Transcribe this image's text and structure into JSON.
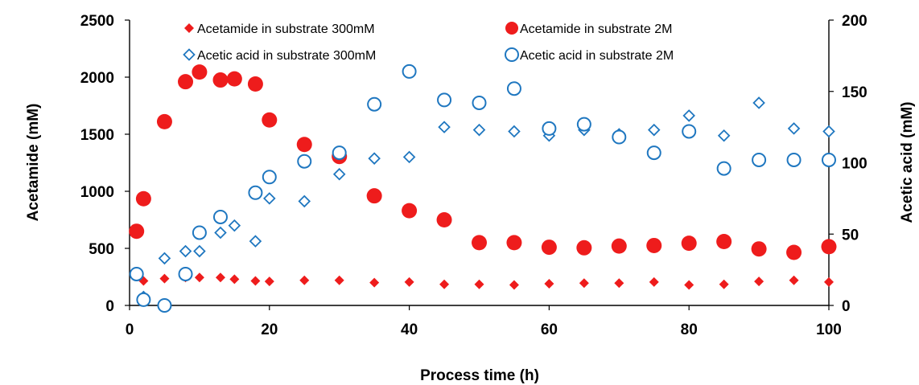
{
  "chart_data": {
    "type": "scatter",
    "xlabel": "Process time (h)",
    "ylabel_left": "Acetamide (mM)",
    "ylabel_right": "Acetic acid (mM)",
    "xlim": [
      0,
      100
    ],
    "ylim_left": [
      0,
      2500
    ],
    "ylim_right": [
      0,
      200
    ],
    "x_ticks": [
      0,
      20,
      40,
      60,
      80,
      100
    ],
    "y_left_ticks": [
      0,
      500,
      1000,
      1500,
      2000,
      2500
    ],
    "y_right_ticks": [
      0,
      50,
      100,
      150,
      200
    ],
    "grid": false,
    "legend_position": "top",
    "series": [
      {
        "name": "Acetamide in substrate 300mM",
        "axis": "left",
        "marker": "filled-diamond",
        "color": "#ee1c1c",
        "x": [
          1,
          2,
          5,
          8,
          10,
          13,
          15,
          18,
          20,
          25,
          30,
          35,
          40,
          45,
          50,
          55,
          60,
          65,
          70,
          75,
          80,
          85,
          90,
          95,
          100
        ],
        "y": [
          265,
          215,
          235,
          245,
          245,
          245,
          230,
          215,
          210,
          220,
          220,
          200,
          205,
          185,
          185,
          180,
          190,
          195,
          195,
          205,
          180,
          185,
          210,
          220,
          205
        ]
      },
      {
        "name": "Acetamide in substrate 2M",
        "axis": "left",
        "marker": "filled-circle",
        "color": "#ee1c1c",
        "x": [
          1,
          2,
          5,
          8,
          10,
          13,
          15,
          18,
          20,
          25,
          30,
          35,
          40,
          45,
          50,
          55,
          60,
          65,
          70,
          75,
          80,
          85,
          90,
          95,
          100
        ],
        "y": [
          650,
          935,
          1610,
          1960,
          2045,
          1975,
          1985,
          1940,
          1625,
          1410,
          1305,
          960,
          830,
          750,
          550,
          550,
          510,
          505,
          520,
          525,
          545,
          560,
          495,
          465,
          515
        ]
      },
      {
        "name": "Acetic acid in substrate 300mM",
        "axis": "right",
        "marker": "open-diamond",
        "color": "#1f77c0",
        "x": [
          1,
          2,
          5,
          8,
          10,
          13,
          15,
          18,
          20,
          25,
          30,
          35,
          40,
          45,
          50,
          55,
          60,
          65,
          70,
          75,
          80,
          85,
          90,
          95,
          100
        ],
        "y": [
          22,
          6,
          33,
          38,
          38,
          51,
          56,
          45,
          75,
          73,
          92,
          103,
          104,
          125,
          123,
          122,
          119,
          123,
          120,
          123,
          133,
          119,
          142,
          124,
          122
        ]
      },
      {
        "name": "Acetic acid in substrate 2M",
        "axis": "right",
        "marker": "open-circle",
        "color": "#1f77c0",
        "x": [
          1,
          2,
          5,
          8,
          13,
          10,
          18,
          20,
          25,
          30,
          35,
          40,
          45,
          50,
          55,
          60,
          65,
          70,
          75,
          80,
          85,
          90,
          95,
          100
        ],
        "y": [
          22,
          4,
          0,
          22,
          62,
          51,
          79,
          90,
          101,
          107,
          141,
          164,
          144,
          142,
          152,
          124,
          127,
          118,
          107,
          122,
          96,
          102,
          102,
          102
        ]
      }
    ]
  }
}
